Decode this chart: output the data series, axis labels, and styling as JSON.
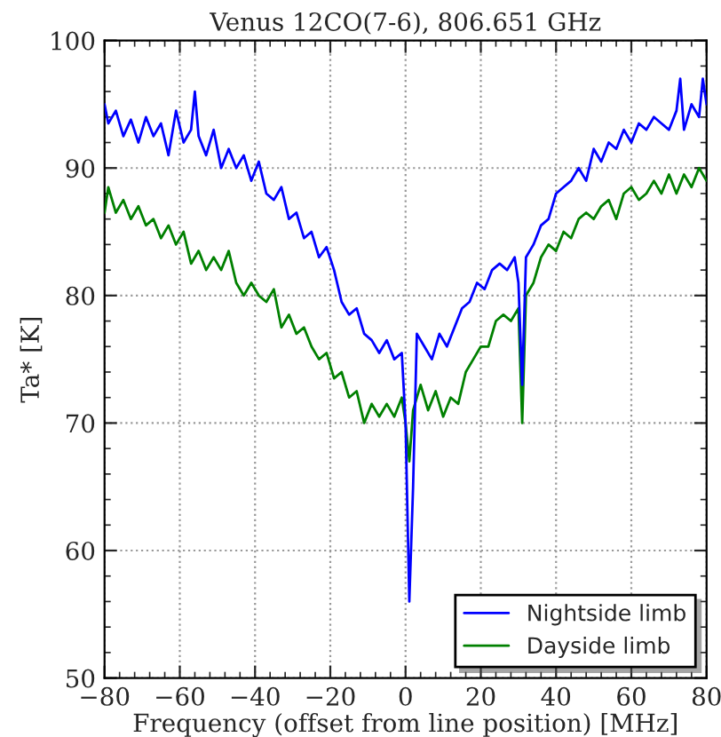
{
  "chart_data": {
    "type": "line",
    "title": "Venus 12CO(7-6), 806.651 GHz",
    "xlabel": "Frequency (offset from line position) [MHz]",
    "ylabel": "Ta* [K]",
    "xlim": [
      -80,
      80
    ],
    "ylim": [
      50,
      100
    ],
    "xticks": [
      {
        "value": -80,
        "label": "−80"
      },
      {
        "value": -60,
        "label": "−60"
      },
      {
        "value": -40,
        "label": "−40"
      },
      {
        "value": -20,
        "label": "−20"
      },
      0,
      20,
      40,
      60,
      80
    ],
    "yticks": [
      50,
      60,
      70,
      80,
      90,
      100
    ],
    "grid": true,
    "legend": "bottom right",
    "line_style": "solid",
    "marker": "none",
    "series": [
      {
        "name": "Nightside limb",
        "color": "#0000ff",
        "x": [
          -80,
          -79,
          -77,
          -75,
          -73,
          -71,
          -69,
          -67,
          -65,
          -63,
          -61,
          -59,
          -57,
          -56,
          -55,
          -53,
          -51,
          -49,
          -47,
          -45,
          -43,
          -41,
          -39,
          -37,
          -35,
          -33,
          -31,
          -29,
          -27,
          -25,
          -23,
          -21,
          -19,
          -17,
          -15,
          -13,
          -11,
          -9,
          -7,
          -5,
          -3,
          -1,
          0,
          1,
          2,
          3,
          5,
          7,
          9,
          11,
          13,
          15,
          17,
          19,
          21,
          23,
          25,
          27,
          29,
          30,
          31,
          32,
          34,
          36,
          38,
          40,
          42,
          44,
          46,
          48,
          50,
          52,
          54,
          56,
          58,
          60,
          62,
          64,
          66,
          68,
          70,
          72,
          73,
          74,
          76,
          78,
          79,
          80
        ],
        "values": [
          95,
          93.5,
          94.5,
          92.5,
          93.8,
          92,
          94,
          92.5,
          93.5,
          91,
          94.5,
          92,
          93,
          96,
          92.5,
          91,
          93,
          90,
          91.5,
          90,
          91,
          89,
          90.5,
          88,
          87.5,
          88.5,
          86,
          86.5,
          84.5,
          85,
          83,
          83.8,
          82,
          79.5,
          78.5,
          79,
          77,
          76.5,
          75.5,
          76.5,
          75,
          75.5,
          70,
          56,
          65,
          77,
          76,
          75,
          77,
          76,
          77.5,
          79,
          79.5,
          81,
          80.5,
          82,
          82.5,
          82,
          83,
          81,
          73,
          83,
          84,
          85.5,
          86,
          88,
          88.5,
          89,
          90,
          89,
          91.5,
          90.5,
          92,
          91.5,
          93,
          92,
          93.5,
          93,
          94,
          93.5,
          93,
          94.5,
          97,
          93,
          95,
          94,
          97,
          95
        ]
      },
      {
        "name": "Dayside limb",
        "color": "#008000",
        "x": [
          -80,
          -79,
          -77,
          -75,
          -73,
          -71,
          -69,
          -67,
          -65,
          -63,
          -61,
          -59,
          -57,
          -55,
          -53,
          -51,
          -49,
          -47,
          -45,
          -43,
          -41,
          -39,
          -37,
          -35,
          -33,
          -31,
          -29,
          -27,
          -25,
          -23,
          -21,
          -19,
          -17,
          -15,
          -13,
          -11,
          -9,
          -7,
          -5,
          -3,
          -1,
          0,
          1,
          2,
          4,
          6,
          8,
          10,
          12,
          14,
          16,
          18,
          20,
          22,
          24,
          26,
          28,
          30,
          31,
          32,
          34,
          36,
          38,
          40,
          42,
          44,
          46,
          48,
          50,
          52,
          54,
          56,
          58,
          60,
          62,
          64,
          66,
          68,
          70,
          72,
          74,
          76,
          78,
          80
        ],
        "values": [
          86.5,
          88.5,
          86.5,
          87.5,
          86,
          87,
          85.5,
          86,
          84.5,
          85.5,
          84,
          85,
          82.5,
          83.5,
          82,
          83,
          82,
          83.5,
          81,
          80,
          81,
          80,
          79.5,
          80.5,
          77.5,
          78.5,
          77,
          77.5,
          76,
          75,
          75.5,
          73.5,
          74,
          72,
          72.5,
          70,
          71.5,
          70.5,
          71.5,
          70.5,
          72,
          70,
          67,
          71,
          73,
          71,
          72.5,
          70.5,
          72,
          71.5,
          74,
          75,
          76,
          76,
          78,
          78.5,
          78,
          79,
          70,
          80,
          81,
          83,
          84,
          83.5,
          85,
          84.5,
          86,
          86.5,
          86,
          87,
          87.5,
          86,
          88,
          88.5,
          87.5,
          88,
          89,
          88,
          89.5,
          88,
          89.5,
          88.5,
          90,
          89
        ]
      }
    ]
  }
}
